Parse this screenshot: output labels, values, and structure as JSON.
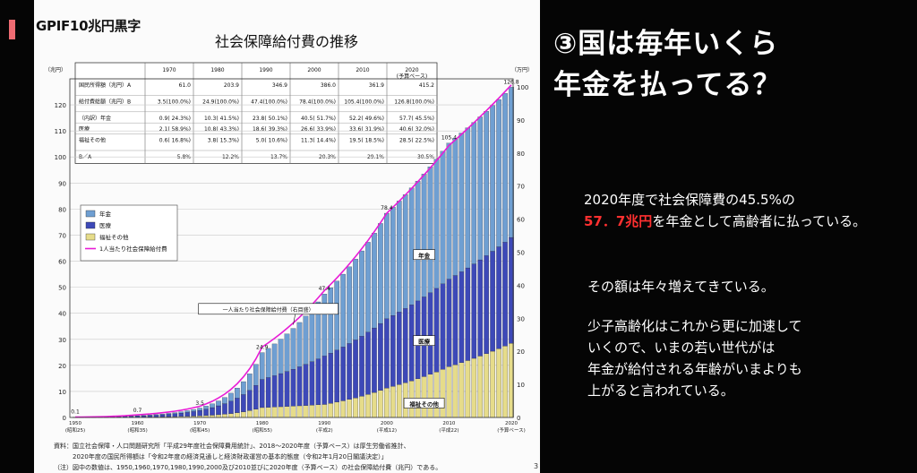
{
  "corner_tag": "GPIF10兆円黒字",
  "chart_title": "社会保障給付費の推移",
  "right_panel": {
    "title_line1": "③国は毎年いくら",
    "title_line2": "年金を払ってる？",
    "p1_pre": "2020年度で社会保障費の45.5%の",
    "p1_highlight": "57．7兆円",
    "p1_post": "を年金として高齢者に払っている。",
    "p2": "その額は年々増えてきている。",
    "p3_lines": [
      "少子高齢化はこれから更に加速して",
      "いくので、いまの若い世代がは",
      "年金が給付される年齢がいまよりも",
      "上がると言われている。"
    ]
  },
  "table": {
    "headers": [
      "",
      "1970",
      "1980",
      "1990",
      "2000",
      "2010",
      "2020\n(予算ベース)"
    ],
    "rows": [
      {
        "label": "国民所得額（兆円）A",
        "cells": [
          "61.0",
          "203.9",
          "346.9",
          "386.0",
          "361.9",
          "415.2"
        ]
      },
      {
        "label": "給付費総額（兆円）B",
        "cells": [
          "3.5(100.0%)",
          "24.9(100.0%)",
          "47.4(100.0%)",
          "78.4(100.0%)",
          "105.4(100.0%)",
          "126.8(100.0%)"
        ]
      },
      {
        "label": "（内訳）年金",
        "cells": [
          "0.9( 24.3%)",
          "10.3( 41.5%)",
          "23.8( 50.1%)",
          "40.5( 51.7%)",
          "52.2( 49.6%)",
          "57.7( 45.5%)"
        ]
      },
      {
        "label": "医療",
        "cells": [
          "2.1( 58.9%)",
          "10.8( 43.3%)",
          "18.6( 39.3%)",
          "26.6( 33.9%)",
          "33.6( 31.9%)",
          "40.6( 32.0%)"
        ]
      },
      {
        "label": "福祉その他",
        "cells": [
          "0.6( 16.8%)",
          "3.8( 15.3%)",
          "5.0( 10.6%)",
          "11.3( 14.4%)",
          "19.5( 18.5%)",
          "28.5( 22.5%)"
        ]
      },
      {
        "label": "B／A",
        "cells": [
          "5.8%",
          "12.2%",
          "13.7%",
          "20.3%",
          "29.1%",
          "30.5%"
        ]
      }
    ]
  },
  "chart_data": {
    "type": "bar",
    "stacked": true,
    "left_axis_unit": "（兆円）",
    "right_axis_unit": "（万円）",
    "ylim": [
      0,
      130
    ],
    "y2lim": [
      0,
      100
    ],
    "yticks": [
      0,
      10,
      20,
      30,
      40,
      50,
      60,
      70,
      80,
      90,
      100,
      110,
      120
    ],
    "y2ticks": [
      0,
      10,
      20,
      30,
      40,
      50,
      60,
      70,
      80,
      90,
      100
    ],
    "xticks": [
      {
        "year": 1950,
        "era": "(昭和25)"
      },
      {
        "year": 1960,
        "era": "(昭和35)"
      },
      {
        "year": 1970,
        "era": "(昭和45)"
      },
      {
        "year": 1980,
        "era": "(昭和55)"
      },
      {
        "year": 1990,
        "era": "(平成2)"
      },
      {
        "year": 2000,
        "era": "(平成12)"
      },
      {
        "year": 2010,
        "era": "(平成22)"
      },
      {
        "year": 2020,
        "era": "(予算ベース)"
      }
    ],
    "legend": [
      "年金",
      "医療",
      "福祉その他",
      "1人当たり社会保障給付費"
    ],
    "legend_position": "upper-left",
    "series_colors": {
      "pension": "#6f9fd2",
      "medical": "#3d49b8",
      "welfare": "#e6dc8a",
      "per_capita": "#e81bd6"
    },
    "annotations": [
      {
        "year": 1950,
        "value": 0.1,
        "text": "0.1"
      },
      {
        "year": 1960,
        "value": 0.7,
        "text": "0.7"
      },
      {
        "year": 1970,
        "value": 3.5,
        "text": "3.5"
      },
      {
        "year": 1980,
        "value": 24.9,
        "text": "24.9"
      },
      {
        "year": 1990,
        "value": 47.4,
        "text": "47.4"
      },
      {
        "year": 2000,
        "value": 78.4,
        "text": "78.4"
      },
      {
        "year": 2010,
        "value": 105.4,
        "text": "105.4"
      },
      {
        "year": 2020,
        "value": 126.8,
        "text": "126.8"
      }
    ],
    "series_labels": [
      "年金",
      "医療",
      "福祉その他"
    ],
    "callout": "一人当たり社会保障給付費（右目盛）",
    "anchors": [
      {
        "year": 1950,
        "pension": 0.02,
        "medical": 0.06,
        "welfare": 0.02,
        "per_capita": 0.1
      },
      {
        "year": 1960,
        "pension": 0.15,
        "medical": 0.42,
        "welfare": 0.13,
        "per_capita": 0.8
      },
      {
        "year": 1970,
        "pension": 0.9,
        "medical": 2.1,
        "welfare": 0.6,
        "per_capita": 3.4
      },
      {
        "year": 1980,
        "pension": 10.3,
        "medical": 10.8,
        "welfare": 3.8,
        "per_capita": 21.3
      },
      {
        "year": 1990,
        "pension": 23.8,
        "medical": 18.6,
        "welfare": 5.0,
        "per_capita": 38.4
      },
      {
        "year": 2000,
        "pension": 40.5,
        "medical": 26.6,
        "welfare": 11.3,
        "per_capita": 61.8
      },
      {
        "year": 2010,
        "pension": 52.2,
        "medical": 33.6,
        "welfare": 19.5,
        "per_capita": 82.3
      },
      {
        "year": 2020,
        "pension": 57.7,
        "medical": 40.6,
        "welfare": 28.5,
        "per_capita": 100.6
      }
    ]
  },
  "source_lines": [
    "資料：国立社会保障・人口問題研究所「平成29年度社会保障費用統計」、2018～2020年度（予算ベース）は厚生労働省推計、",
    "　　　2020年度の国民所得額は「令和2年度の経済見通しと経済財政運営の基本的態度（令和2年1月20日閣議決定）」",
    "（注）図中の数値は、1950,1960,1970,1980,1990,2000及び2010並びに2020年度（予算ベース）の社会保障給付費（兆円）である。"
  ],
  "page_number": "3"
}
